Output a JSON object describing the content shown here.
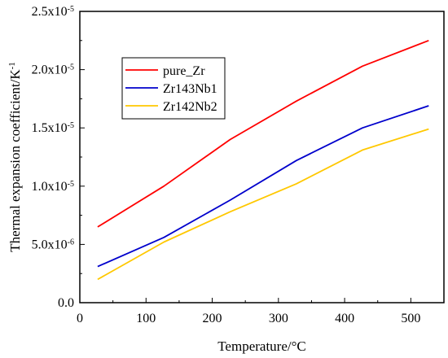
{
  "chart_data": {
    "type": "line",
    "xlabel": "Temperature/°C",
    "ylabel": "Thermal expansion coefficient/K",
    "ylabel_superscript": "-1",
    "xlim": [
      0,
      550
    ],
    "ylim": [
      0,
      2.5e-05
    ],
    "x_ticks": [
      0,
      100,
      200,
      300,
      400,
      500
    ],
    "y_ticks": [
      {
        "value": 0,
        "mantissa": "0.0",
        "exponent": ""
      },
      {
        "value": 5e-06,
        "mantissa": "5.0x10",
        "exponent": "-6"
      },
      {
        "value": 1e-05,
        "mantissa": "1.0x10",
        "exponent": "-5"
      },
      {
        "value": 1.5e-05,
        "mantissa": "1.5x10",
        "exponent": "-5"
      },
      {
        "value": 2e-05,
        "mantissa": "2.0x10",
        "exponent": "-5"
      },
      {
        "value": 2.5e-05,
        "mantissa": "2.5x10",
        "exponent": "-5"
      }
    ],
    "grid": false,
    "legend_position": "top-left",
    "x": [
      27,
      127,
      227,
      327,
      427,
      527
    ],
    "series": [
      {
        "name": "pure_Zr",
        "color": "#ff0000",
        "values": [
          6.5e-06,
          1e-05,
          1.4e-05,
          1.73e-05,
          2.03e-05,
          2.25e-05
        ]
      },
      {
        "name": "Zr143Nb1",
        "color": "#0000cc",
        "values": [
          3.1e-06,
          5.6e-06,
          8.8e-06,
          1.22e-05,
          1.5e-05,
          1.69e-05
        ]
      },
      {
        "name": "Zr142Nb2",
        "color": "#ffc800",
        "values": [
          2e-06,
          5.2e-06,
          7.8e-06,
          1.02e-05,
          1.31e-05,
          1.49e-05
        ]
      }
    ]
  }
}
